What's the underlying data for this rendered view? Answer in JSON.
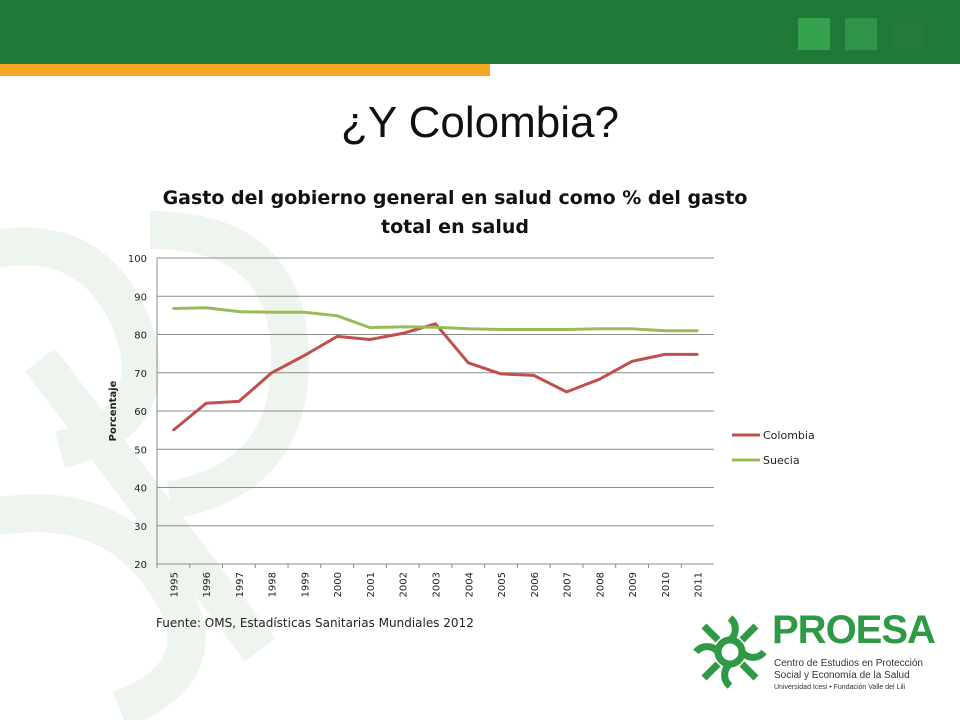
{
  "slide": {
    "title": "¿Y Colombia?"
  },
  "source_note": "Fuente: OMS, Estadísticas Sanitarias Mundiales 2012",
  "logo": {
    "name": "PROESA",
    "subtitle": "Centro de Estudios en Protección Social y Economía de la Salud",
    "institutions": "Universidad Icesi  •  Fundación Valle del Lili"
  },
  "colors": {
    "header": "#1f7a3a",
    "accent": "#f6a623",
    "colombia": "#c0504d",
    "suecia": "#9bbb59"
  },
  "chart_data": {
    "type": "line",
    "title": "Gasto del gobierno general en salud como % del gasto total en salud",
    "ylabel": "Porcentaje",
    "ylim": [
      20,
      100
    ],
    "yticks": [
      20,
      30,
      40,
      50,
      60,
      70,
      80,
      90,
      100
    ],
    "grid": true,
    "legend_position": "right",
    "categories": [
      "1995",
      "1996",
      "1997",
      "1998",
      "1999",
      "2000",
      "2001",
      "2002",
      "2003",
      "2004",
      "2005",
      "2006",
      "2007",
      "2008",
      "2009",
      "2010",
      "2011"
    ],
    "series": [
      {
        "name": "Colombia",
        "color": "#c0504d",
        "values": [
          55.0,
          62.0,
          62.5,
          70.0,
          74.5,
          79.5,
          78.7,
          80.3,
          82.8,
          72.6,
          69.7,
          69.3,
          65.0,
          68.3,
          73.0,
          74.8,
          74.8
        ]
      },
      {
        "name": "Suecia",
        "color": "#9bbb59",
        "values": [
          86.8,
          87.0,
          86.0,
          85.8,
          85.8,
          84.9,
          81.8,
          82.0,
          81.9,
          81.5,
          81.3,
          81.3,
          81.3,
          81.5,
          81.5,
          81.0,
          81.0
        ]
      }
    ]
  }
}
